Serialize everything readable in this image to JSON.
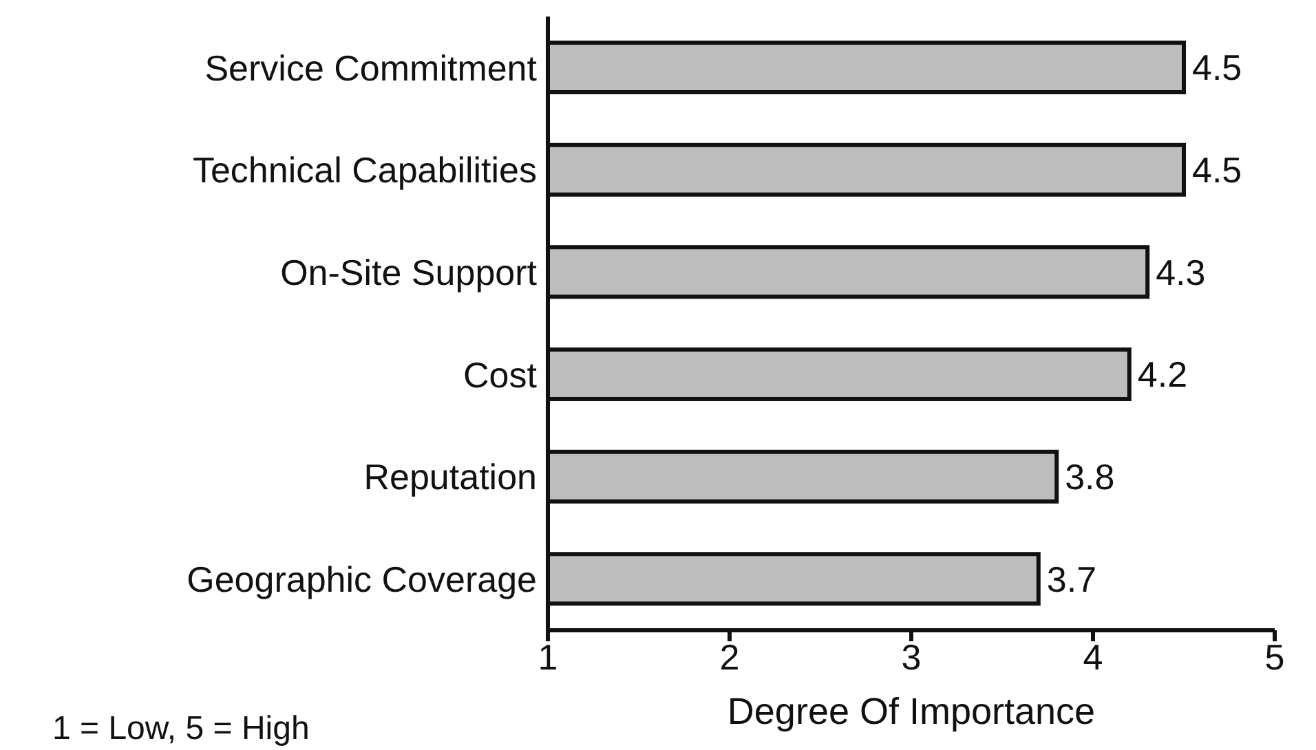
{
  "chart_data": {
    "type": "bar",
    "orientation": "horizontal",
    "xlabel": "Degree Of Importance",
    "categories": [
      "Service Commitment",
      "Technical Capabilities",
      "On-Site Support",
      "Cost",
      "Reputation",
      "Geographic Coverage"
    ],
    "values": [
      4.5,
      4.5,
      4.3,
      4.2,
      3.8,
      3.7
    ],
    "color": "#bdbdbd",
    "xlim": [
      1,
      5
    ],
    "xticks": [
      1,
      2,
      3,
      4,
      5
    ],
    "data_labels": true,
    "grid": false,
    "annotations": [
      "1 = Low, 5 = High"
    ]
  }
}
